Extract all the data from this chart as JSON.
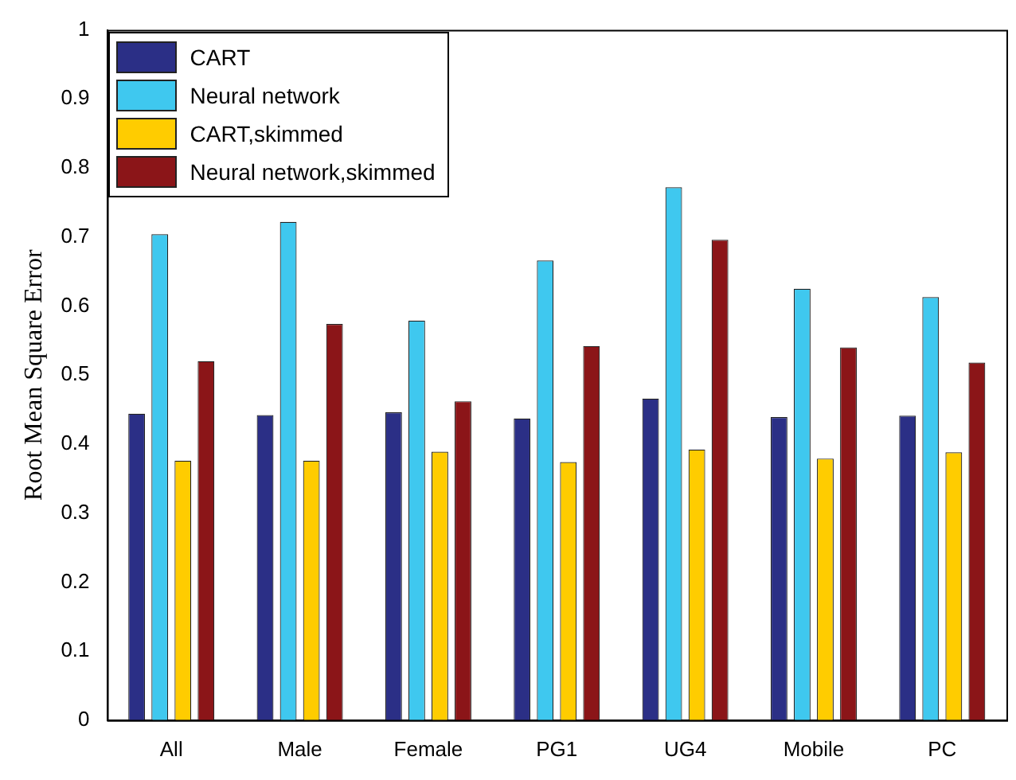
{
  "chart_data": {
    "type": "bar",
    "ylabel": "Root Mean Square Error",
    "categories": [
      "All",
      "Male",
      "Female",
      "PG1",
      "UG4",
      "Mobile",
      "PC"
    ],
    "series": [
      {
        "name": "CART",
        "color": "#2b2f86",
        "values": [
          0.444,
          0.442,
          0.446,
          0.437,
          0.466,
          0.439,
          0.441
        ]
      },
      {
        "name": "Neural network",
        "color": "#3fc8ef",
        "values": [
          0.704,
          0.722,
          0.579,
          0.666,
          0.772,
          0.625,
          0.613
        ]
      },
      {
        "name": "CART,skimmed",
        "color": "#ffcc00",
        "values": [
          0.376,
          0.376,
          0.389,
          0.374,
          0.392,
          0.379,
          0.388
        ]
      },
      {
        "name": "Neural network,skimmed",
        "color": "#8b1518",
        "values": [
          0.52,
          0.574,
          0.462,
          0.542,
          0.696,
          0.54,
          0.518
        ]
      }
    ],
    "ylim": [
      0,
      1
    ],
    "yticks": [
      0,
      0.1,
      0.2,
      0.3,
      0.4,
      0.5,
      0.6,
      0.7,
      0.8,
      0.9,
      1
    ],
    "grid": false,
    "legend": "top left"
  }
}
